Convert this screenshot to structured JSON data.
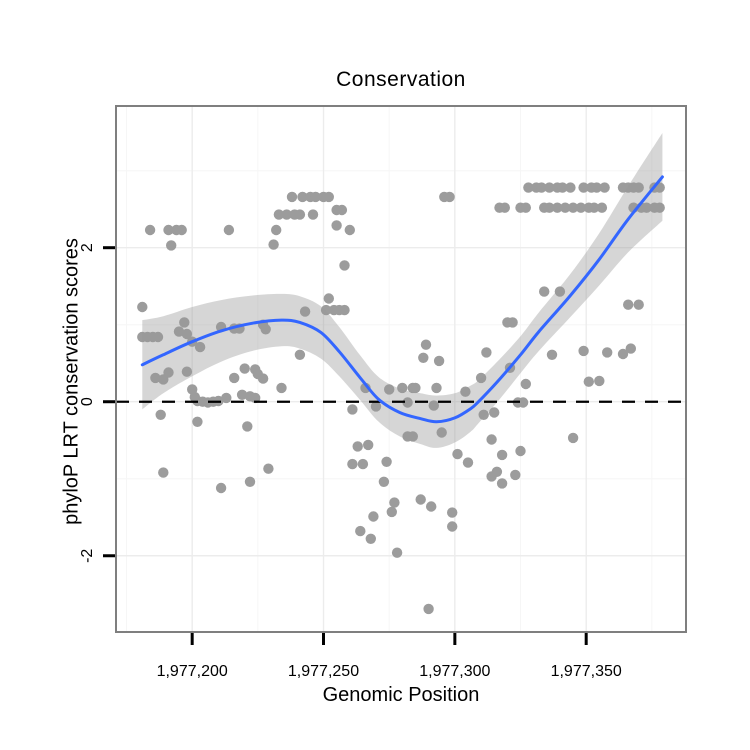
{
  "page": {
    "background": "#ffffff"
  },
  "chart_data": {
    "type": "scatter",
    "title": "Conservation",
    "xlabel": "Genomic Position",
    "ylabel": "phyloP LRT conservation scores",
    "legend": "none",
    "grid": true,
    "x_domain": [
      1977171,
      1977388
    ],
    "y_domain": [
      -2.99,
      3.84
    ],
    "x_ticks": [
      {
        "value": 1977200,
        "label": "1,977,200"
      },
      {
        "value": 1977250,
        "label": "1,977,250"
      },
      {
        "value": 1977300,
        "label": "1,977,300"
      },
      {
        "value": 1977350,
        "label": "1,977,350"
      }
    ],
    "y_ticks": [
      {
        "value": 2,
        "label": "2"
      },
      {
        "value": 0,
        "label": "0"
      },
      {
        "value": -2,
        "label": "-2"
      }
    ],
    "x_minor_gridlines": [
      1977175,
      1977225,
      1977275,
      1977325,
      1977375
    ],
    "y_minor_gridlines": [
      -1,
      1,
      3
    ],
    "hline": {
      "y": 0,
      "style": "dashed",
      "color": "#000000"
    },
    "colors": {
      "point": "#9C9C9C",
      "smooth_line": "#3366FF",
      "band": "#999999",
      "band_opacity": 0.4,
      "panel_border": "#7F7F7F",
      "grid_major": "#ECECEC",
      "grid_minor": "#F6F6F6",
      "text": "#000000"
    },
    "smooth": {
      "x": [
        1977181,
        1977189,
        1977200,
        1977211,
        1977223,
        1977234,
        1977241,
        1977249,
        1977256,
        1977264,
        1977271,
        1977279,
        1977287,
        1977293,
        1977300,
        1977306,
        1977309,
        1977317,
        1977325,
        1977332,
        1977344,
        1977355,
        1977366,
        1977379
      ],
      "y": [
        0.48,
        0.61,
        0.78,
        0.92,
        1.02,
        1.06,
        1.03,
        0.9,
        0.65,
        0.31,
        0.03,
        -0.14,
        -0.22,
        -0.26,
        -0.21,
        -0.09,
        0.0,
        0.29,
        0.61,
        0.91,
        1.38,
        1.85,
        2.37,
        2.92
      ],
      "half_width": [
        0.58,
        0.5,
        0.45,
        0.4,
        0.36,
        0.34,
        0.34,
        0.34,
        0.32,
        0.29,
        0.29,
        0.31,
        0.33,
        0.34,
        0.32,
        0.3,
        0.28,
        0.26,
        0.24,
        0.25,
        0.28,
        0.34,
        0.43,
        0.57
      ]
    },
    "points": [
      [
        1977184,
        2.23
      ],
      [
        1977191,
        2.23
      ],
      [
        1977194,
        2.23
      ],
      [
        1977196,
        2.23
      ],
      [
        1977214,
        2.23
      ],
      [
        1977192,
        2.03
      ],
      [
        1977238,
        2.66
      ],
      [
        1977242,
        2.66
      ],
      [
        1977245,
        2.66
      ],
      [
        1977247,
        2.66
      ],
      [
        1977250,
        2.66
      ],
      [
        1977252,
        2.66
      ],
      [
        1977233,
        2.43
      ],
      [
        1977236,
        2.43
      ],
      [
        1977239,
        2.43
      ],
      [
        1977241,
        2.43
      ],
      [
        1977246,
        2.43
      ],
      [
        1977255,
        2.49
      ],
      [
        1977257,
        2.49
      ],
      [
        1977232,
        2.23
      ],
      [
        1977231,
        2.04
      ],
      [
        1977255,
        2.29
      ],
      [
        1977260,
        2.23
      ],
      [
        1977258,
        1.77
      ],
      [
        1977296,
        2.66
      ],
      [
        1977298,
        2.66
      ],
      [
        1977181,
        1.23
      ],
      [
        1977181,
        0.84
      ],
      [
        1977183,
        0.84
      ],
      [
        1977185,
        0.84
      ],
      [
        1977187,
        0.84
      ],
      [
        1977195,
        0.91
      ],
      [
        1977197,
        1.03
      ],
      [
        1977198,
        0.88
      ],
      [
        1977200,
        0.78
      ],
      [
        1977203,
        0.71
      ],
      [
        1977211,
        0.97
      ],
      [
        1977216,
        0.95
      ],
      [
        1977218,
        0.95
      ],
      [
        1977227,
        1.0
      ],
      [
        1977228,
        0.94
      ],
      [
        1977243,
        1.17
      ],
      [
        1977241,
        0.61
      ],
      [
        1977186,
        0.31
      ],
      [
        1977189,
        0.29
      ],
      [
        1977191,
        0.38
      ],
      [
        1977198,
        0.39
      ],
      [
        1977216,
        0.31
      ],
      [
        1977220,
        0.43
      ],
      [
        1977224,
        0.42
      ],
      [
        1977225,
        0.36
      ],
      [
        1977227,
        0.3
      ],
      [
        1977234,
        0.18
      ],
      [
        1977200,
        0.16
      ],
      [
        1977201,
        0.06
      ],
      [
        1977202,
        0.01
      ],
      [
        1977204,
        0.0
      ],
      [
        1977206,
        -0.01
      ],
      [
        1977208,
        0.0
      ],
      [
        1977210,
        0.01
      ],
      [
        1977213,
        0.05
      ],
      [
        1977219,
        0.09
      ],
      [
        1977222,
        0.07
      ],
      [
        1977224,
        0.05
      ],
      [
        1977188,
        -0.17
      ],
      [
        1977202,
        -0.26
      ],
      [
        1977221,
        -0.32
      ],
      [
        1977252,
        1.34
      ],
      [
        1977251,
        1.19
      ],
      [
        1977254,
        1.19
      ],
      [
        1977256,
        1.19
      ],
      [
        1977258,
        1.19
      ],
      [
        1977289,
        0.74
      ],
      [
        1977288,
        0.57
      ],
      [
        1977294,
        0.53
      ],
      [
        1977312,
        0.64
      ],
      [
        1977266,
        0.18
      ],
      [
        1977270,
        -0.06
      ],
      [
        1977275,
        0.16
      ],
      [
        1977280,
        0.18
      ],
      [
        1977284,
        0.18
      ],
      [
        1977285,
        0.18
      ],
      [
        1977293,
        0.18
      ],
      [
        1977282,
        -0.01
      ],
      [
        1977261,
        -0.1
      ],
      [
        1977292,
        -0.05
      ],
      [
        1977304,
        0.13
      ],
      [
        1977310,
        0.31
      ],
      [
        1977311,
        -0.17
      ],
      [
        1977295,
        -0.4
      ],
      [
        1977282,
        -0.45
      ],
      [
        1977284,
        -0.45
      ],
      [
        1977301,
        -0.68
      ],
      [
        1977263,
        -0.58
      ],
      [
        1977267,
        -0.56
      ],
      [
        1977314,
        -0.49
      ],
      [
        1977334,
        1.43
      ],
      [
        1977340,
        1.43
      ],
      [
        1977366,
        1.26
      ],
      [
        1977370,
        1.26
      ],
      [
        1977320,
        1.03
      ],
      [
        1977322,
        1.03
      ],
      [
        1977337,
        0.61
      ],
      [
        1977349,
        0.66
      ],
      [
        1977358,
        0.64
      ],
      [
        1977364,
        0.62
      ],
      [
        1977367,
        0.69
      ],
      [
        1977321,
        0.44
      ],
      [
        1977327,
        0.23
      ],
      [
        1977351,
        0.26
      ],
      [
        1977355,
        0.27
      ],
      [
        1977324,
        -0.01
      ],
      [
        1977326,
        -0.01
      ],
      [
        1977315,
        -0.14
      ],
      [
        1977345,
        -0.47
      ],
      [
        1977189,
        -0.92
      ],
      [
        1977211,
        -1.12
      ],
      [
        1977222,
        -1.04
      ],
      [
        1977229,
        -0.87
      ],
      [
        1977261,
        -0.81
      ],
      [
        1977265,
        -0.81
      ],
      [
        1977274,
        -0.78
      ],
      [
        1977273,
        -1.04
      ],
      [
        1977277,
        -1.31
      ],
      [
        1977276,
        -1.43
      ],
      [
        1977269,
        -1.49
      ],
      [
        1977264,
        -1.68
      ],
      [
        1977268,
        -1.78
      ],
      [
        1977278,
        -1.96
      ],
      [
        1977287,
        -1.27
      ],
      [
        1977291,
        -1.36
      ],
      [
        1977299,
        -1.44
      ],
      [
        1977299,
        -1.62
      ],
      [
        1977290,
        -2.69
      ],
      [
        1977305,
        -0.79
      ],
      [
        1977314,
        -0.97
      ],
      [
        1977318,
        -0.69
      ],
      [
        1977325,
        -0.64
      ],
      [
        1977316,
        -0.91
      ],
      [
        1977323,
        -0.95
      ],
      [
        1977318,
        -1.06
      ],
      [
        1977328,
        2.78
      ],
      [
        1977331,
        2.78
      ],
      [
        1977333,
        2.78
      ],
      [
        1977336,
        2.78
      ],
      [
        1977339,
        2.78
      ],
      [
        1977341,
        2.78
      ],
      [
        1977344,
        2.78
      ],
      [
        1977349,
        2.78
      ],
      [
        1977352,
        2.78
      ],
      [
        1977354,
        2.78
      ],
      [
        1977357,
        2.78
      ],
      [
        1977364,
        2.78
      ],
      [
        1977366,
        2.78
      ],
      [
        1977368,
        2.78
      ],
      [
        1977370,
        2.78
      ],
      [
        1977376,
        2.78
      ],
      [
        1977378,
        2.78
      ],
      [
        1977317,
        2.52
      ],
      [
        1977319,
        2.52
      ],
      [
        1977325,
        2.52
      ],
      [
        1977327,
        2.52
      ],
      [
        1977334,
        2.52
      ],
      [
        1977336,
        2.52
      ],
      [
        1977339,
        2.52
      ],
      [
        1977342,
        2.52
      ],
      [
        1977345,
        2.52
      ],
      [
        1977348,
        2.52
      ],
      [
        1977351,
        2.52
      ],
      [
        1977353,
        2.52
      ],
      [
        1977356,
        2.52
      ],
      [
        1977368,
        2.52
      ],
      [
        1977371,
        2.52
      ],
      [
        1977373,
        2.52
      ],
      [
        1977376,
        2.52
      ],
      [
        1977378,
        2.52
      ]
    ]
  }
}
